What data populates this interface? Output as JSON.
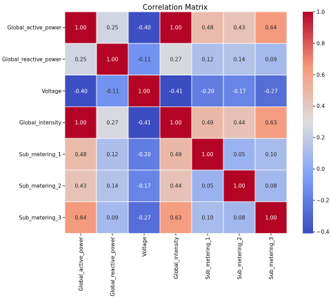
{
  "chart_data": {
    "type": "heatmap",
    "title": "Correlation Matrix",
    "row_labels": [
      "Global_active_power",
      "Global_reactive_power",
      "Voltage",
      "Global_intensity",
      "Sub_metering_1",
      "Sub_metering_2",
      "Sub_metering_3"
    ],
    "col_labels": [
      "Global_active_power",
      "Global_reactive_power",
      "Voltage",
      "Global_intensity",
      "Sub_metering_1",
      "Sub_metering_2",
      "Sub_metering_3"
    ],
    "values": [
      [
        1.0,
        0.25,
        -0.4,
        1.0,
        0.48,
        0.43,
        0.64
      ],
      [
        0.25,
        1.0,
        -0.11,
        0.27,
        0.12,
        0.14,
        0.09
      ],
      [
        -0.4,
        -0.11,
        1.0,
        -0.41,
        -0.2,
        -0.17,
        -0.27
      ],
      [
        1.0,
        0.27,
        -0.41,
        1.0,
        0.49,
        0.44,
        0.63
      ],
      [
        0.48,
        0.12,
        -0.2,
        0.49,
        1.0,
        0.05,
        0.1
      ],
      [
        0.43,
        0.14,
        -0.17,
        0.44,
        0.05,
        1.0,
        0.08
      ],
      [
        0.64,
        0.09,
        -0.27,
        0.63,
        0.1,
        0.08,
        1.0
      ]
    ],
    "value_range": [
      -0.41,
      1.0
    ],
    "colormap": "coolwarm",
    "colorbar": {
      "ticks": [
        1.0,
        0.8,
        0.6,
        0.4,
        0.2,
        0.0,
        -0.2,
        -0.4
      ],
      "tick_labels": [
        "1.0",
        "0.8",
        "0.6",
        "0.4",
        "0.2",
        "0.0",
        "−0.2",
        "−0.4"
      ]
    },
    "annotations": true,
    "legend": "colorbar-right"
  }
}
